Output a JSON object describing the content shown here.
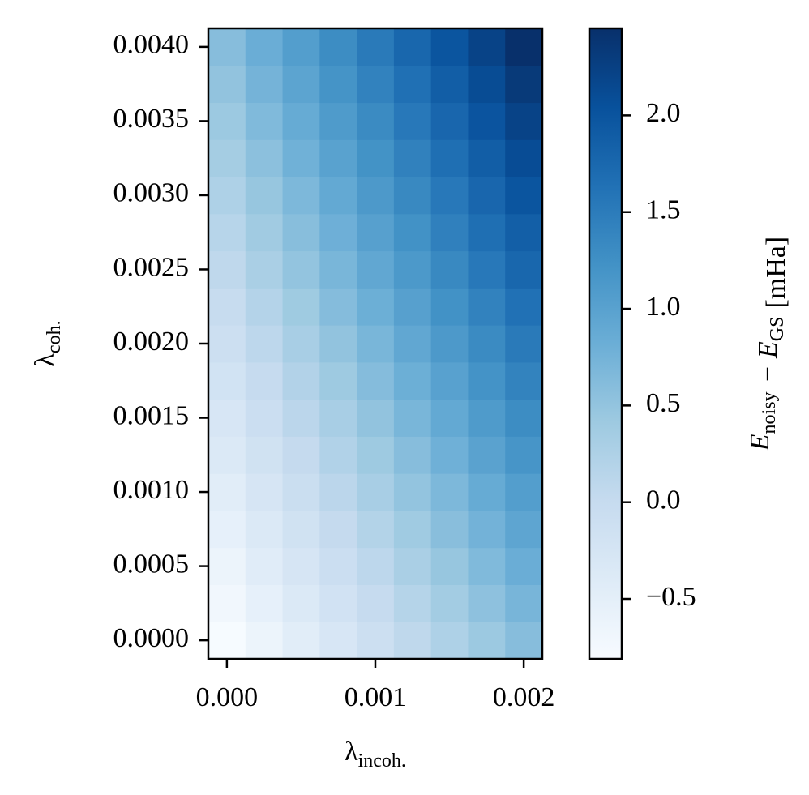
{
  "chart_data": {
    "type": "heatmap",
    "x": [
      0,
      0.00025,
      0.0005,
      0.00075,
      0.001,
      0.00125,
      0.0015,
      0.00175,
      0.002
    ],
    "y": [
      0,
      0.00025,
      0.0005,
      0.00075,
      0.001,
      0.00125,
      0.0015,
      0.00175,
      0.002,
      0.00225,
      0.0025,
      0.00275,
      0.003,
      0.00325,
      0.0035,
      0.00375,
      0.004
    ],
    "z": [
      [
        -0.8,
        -0.63,
        -0.45,
        -0.28,
        -0.1,
        0.08,
        0.25,
        0.43,
        0.6
      ],
      [
        -0.71,
        -0.53,
        -0.36,
        -0.18,
        0.0,
        0.18,
        0.36,
        0.54,
        0.72
      ],
      [
        -0.63,
        -0.44,
        -0.26,
        -0.08,
        0.1,
        0.29,
        0.47,
        0.65,
        0.83
      ],
      [
        -0.54,
        -0.35,
        -0.17,
        0.02,
        0.2,
        0.39,
        0.58,
        0.76,
        0.95
      ],
      [
        -0.45,
        -0.26,
        -0.07,
        0.12,
        0.31,
        0.5,
        0.68,
        0.87,
        1.06
      ],
      [
        -0.36,
        -0.17,
        0.02,
        0.22,
        0.41,
        0.6,
        0.79,
        0.99,
        1.18
      ],
      [
        -0.28,
        -0.08,
        0.12,
        0.31,
        0.51,
        0.71,
        0.9,
        1.1,
        1.29
      ],
      [
        -0.19,
        0.01,
        0.21,
        0.41,
        0.61,
        0.81,
        1.01,
        1.21,
        1.41
      ],
      [
        -0.1,
        0.1,
        0.31,
        0.51,
        0.71,
        0.92,
        1.12,
        1.32,
        1.53
      ],
      [
        -0.01,
        0.19,
        0.4,
        0.61,
        0.81,
        1.02,
        1.23,
        1.43,
        1.64
      ],
      [
        0.08,
        0.29,
        0.5,
        0.71,
        0.92,
        1.13,
        1.34,
        1.55,
        1.76
      ],
      [
        0.16,
        0.38,
        0.59,
        0.8,
        1.02,
        1.23,
        1.45,
        1.66,
        1.87
      ],
      [
        0.25,
        0.47,
        0.68,
        0.9,
        1.12,
        1.34,
        1.55,
        1.77,
        1.99
      ],
      [
        0.34,
        0.56,
        0.78,
        1.0,
        1.22,
        1.44,
        1.66,
        1.88,
        2.1
      ],
      [
        0.43,
        0.65,
        0.87,
        1.1,
        1.32,
        1.55,
        1.77,
        2.0,
        2.22
      ],
      [
        0.51,
        0.74,
        0.97,
        1.2,
        1.42,
        1.65,
        1.88,
        2.11,
        2.33
      ],
      [
        0.6,
        0.83,
        1.06,
        1.29,
        1.53,
        1.76,
        1.99,
        2.22,
        2.45
      ]
    ],
    "xlim": [
      -0.000125,
      0.002125
    ],
    "ylim": [
      -0.000125,
      0.004125
    ],
    "xticks": [
      {
        "value": 0,
        "label": "0.000"
      },
      {
        "value": 0.001,
        "label": "0.001"
      },
      {
        "value": 0.002,
        "label": "0.002"
      }
    ],
    "yticks": [
      {
        "value": 0,
        "label": "0.0000"
      },
      {
        "value": 0.0005,
        "label": "0.0005"
      },
      {
        "value": 0.001,
        "label": "0.0010"
      },
      {
        "value": 0.0015,
        "label": "0.0015"
      },
      {
        "value": 0.002,
        "label": "0.0020"
      },
      {
        "value": 0.0025,
        "label": "0.0025"
      },
      {
        "value": 0.003,
        "label": "0.0030"
      },
      {
        "value": 0.0035,
        "label": "0.0035"
      },
      {
        "value": 0.004,
        "label": "0.0040"
      }
    ],
    "xlabel": {
      "main": "λ",
      "sub": "incoh."
    },
    "ylabel": {
      "main": "λ",
      "sub": "coh."
    },
    "clim": [
      -0.81,
      2.45
    ],
    "cticks": [
      {
        "value": -0.5,
        "label": "−0.5"
      },
      {
        "value": 0,
        "label": "0.0"
      },
      0.5,
      {
        "value": 1,
        "label": "1.0"
      },
      1.5,
      {
        "value": 2,
        "label": "2.0"
      }
    ],
    "colorbar_label": [
      {
        "main": "E",
        "sub": "noisy"
      },
      {
        "main": "− E",
        "sub": "GS"
      },
      {
        "main": "[mHa]"
      }
    ],
    "colormap": [
      "#f7fbff",
      "#deebf7",
      "#c6dbef",
      "#9ecae1",
      "#6baed6",
      "#4292c6",
      "#2171b5",
      "#08519c",
      "#08306b"
    ]
  }
}
